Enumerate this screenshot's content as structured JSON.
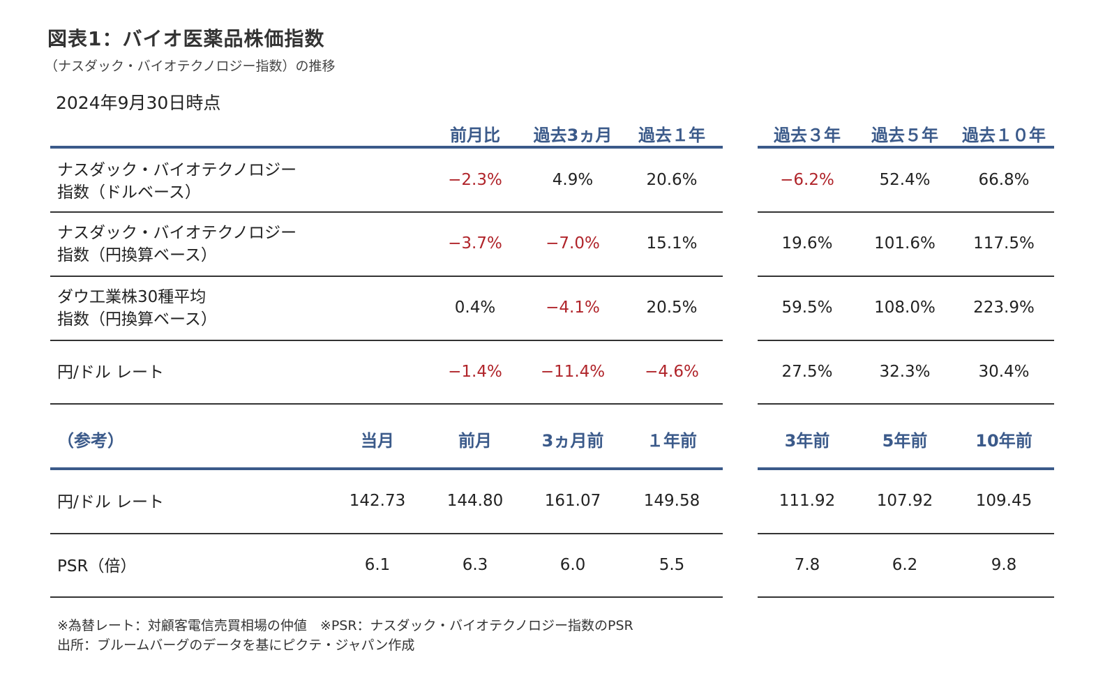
{
  "title": "図表1：バイオ医薬品株価指数",
  "subtitle": "（ナスダック・バイオテクノロジー指数）の推移",
  "as_of": "2024年9月30日時点",
  "table1": {
    "headers": [
      "前月比",
      "過去3ヵ月",
      "過去１年",
      "過去３年",
      "過去５年",
      "過去１０年"
    ],
    "rows": [
      {
        "label_line1": "ナスダック・バイオテクノロジー",
        "label_line2": "指数（ドルベース）",
        "values": [
          "−2.3%",
          "4.9%",
          "20.6%",
          "−6.2%",
          "52.4%",
          "66.8%"
        ]
      },
      {
        "label_line1": "ナスダック・バイオテクノロジー",
        "label_line2": "指数（円換算ベース）",
        "values": [
          "−3.7%",
          "−7.0%",
          "15.1%",
          "19.6%",
          "101.6%",
          "117.5%"
        ]
      },
      {
        "label_line1": "ダウ工業株30種平均",
        "label_line2": "指数（円換算ベース）",
        "values": [
          "0.4%",
          "−4.1%",
          "20.5%",
          "59.5%",
          "108.0%",
          "223.9%"
        ]
      },
      {
        "label_line1": "円/ドル レート",
        "label_line2": "",
        "values": [
          "−1.4%",
          "−11.4%",
          "−4.6%",
          "27.5%",
          "32.3%",
          "30.4%"
        ]
      }
    ]
  },
  "table2": {
    "ref_label": "（参考）",
    "headers": [
      "当月",
      "前月",
      "3ヵ月前",
      "１年前",
      "3年前",
      "5年前",
      "10年前"
    ],
    "rows": [
      {
        "label": "円/ドル レート",
        "values": [
          "142.73",
          "144.80",
          "161.07",
          "149.58",
          "111.92",
          "107.92",
          "109.45"
        ]
      },
      {
        "label": "PSR（倍）",
        "values": [
          "6.1",
          "6.3",
          "6.0",
          "5.5",
          "7.8",
          "6.2",
          "9.8"
        ]
      }
    ]
  },
  "notes": {
    "line1": "※為替レート：対顧客電信売買相場の仲値　※PSR：ナスダック・バイオテクノロジー指数のPSR",
    "line2": "出所：ブルームバーグのデータを基にピクテ・ジャパン作成"
  },
  "colors": {
    "header_blue": "#3b5a8a",
    "negative_red": "#b0242a"
  }
}
